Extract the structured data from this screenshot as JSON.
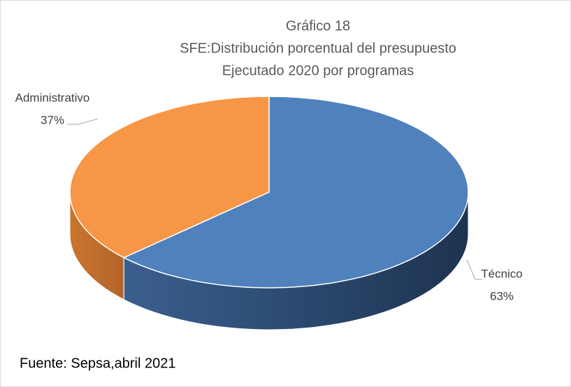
{
  "chart_data": {
    "type": "pie",
    "title": [
      "Gráfico 18",
      "SFE:Distribución porcentual del presupuesto",
      "Ejecutado 2020 por programas"
    ],
    "categories": [
      "Técnico",
      "Administrativo"
    ],
    "values": [
      63,
      37
    ],
    "value_labels": [
      "63%",
      "37%"
    ],
    "colors": [
      "#4f81bd",
      "#f79646"
    ],
    "source": "Fuente: Sepsa,abril 2021"
  }
}
